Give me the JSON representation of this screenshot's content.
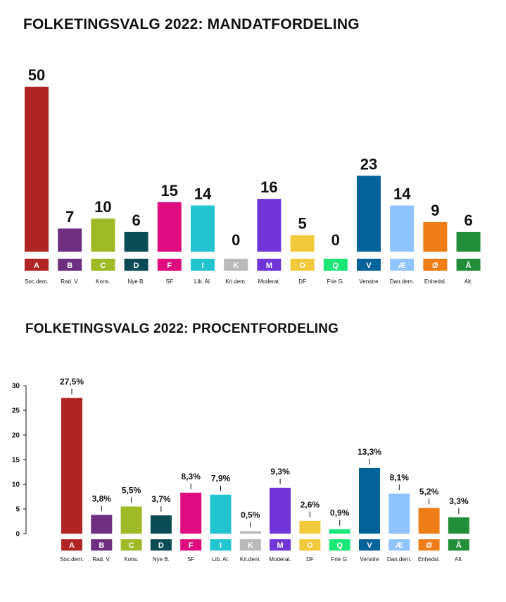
{
  "chart_data": [
    {
      "type": "bar",
      "title": "FOLKETINGSVALG 2022: MANDATFORDELING",
      "letters": [
        "A",
        "B",
        "C",
        "D",
        "F",
        "I",
        "K",
        "M",
        "O",
        "Q",
        "V",
        "Æ",
        "Ø",
        "Å"
      ],
      "categories": [
        "Soc.dem.",
        "Rad. V.",
        "Kons.",
        "Nye B.",
        "SF",
        "Lib. Al.",
        "Kri.dem.",
        "Moderat.",
        "DF",
        "Frie G.",
        "Venstre",
        "Dan.dem.",
        "Enhedsl.",
        "Alt."
      ],
      "values": [
        50,
        7,
        10,
        6,
        15,
        14,
        0,
        16,
        5,
        0,
        23,
        14,
        9,
        6
      ],
      "value_labels": [
        "50",
        "7",
        "10",
        "6",
        "15",
        "14",
        "0",
        "16",
        "5",
        "0",
        "23",
        "14",
        "9",
        "6"
      ],
      "ylim": [
        0,
        50
      ],
      "grid": false,
      "legend": "none"
    },
    {
      "type": "bar",
      "title": "FOLKETINGSVALG 2022: PROCENTFORDELING",
      "letters": [
        "A",
        "B",
        "C",
        "D",
        "F",
        "I",
        "K",
        "M",
        "O",
        "Q",
        "V",
        "Æ",
        "Ø",
        "Å"
      ],
      "categories": [
        "Soc.dem.",
        "Rad. V.",
        "Kons.",
        "Nye B.",
        "SF",
        "Lib. Al.",
        "Kri.dem.",
        "Moderat.",
        "DF",
        "Frie G.",
        "Venstre",
        "Dan.dem.",
        "Enhedsl.",
        "Alt."
      ],
      "values": [
        27.5,
        3.8,
        5.5,
        3.7,
        8.3,
        7.9,
        0.5,
        9.3,
        2.6,
        0.9,
        13.3,
        8.1,
        5.2,
        3.3
      ],
      "value_labels": [
        "27,5%",
        "3,8%",
        "5,5%",
        "3,7%",
        "8,3%",
        "7,9%",
        "0,5%",
        "9,3%",
        "2,6%",
        "0,9%",
        "13,3%",
        "8,1%",
        "5,2%",
        "3,3%"
      ],
      "yticks": [
        "0",
        "5",
        "10",
        "15",
        "20",
        "25",
        "30"
      ],
      "ylim": [
        0,
        30
      ],
      "grid": false,
      "legend": "none"
    }
  ],
  "colors": [
    "#b02524",
    "#6e2f80",
    "#9fba27",
    "#0b4b55",
    "#df0c7f",
    "#22c4d0",
    "#b9b9b9",
    "#7134d8",
    "#f2c93b",
    "#1be776",
    "#05639b",
    "#8fc4ff",
    "#ef7d17",
    "#238e39"
  ]
}
